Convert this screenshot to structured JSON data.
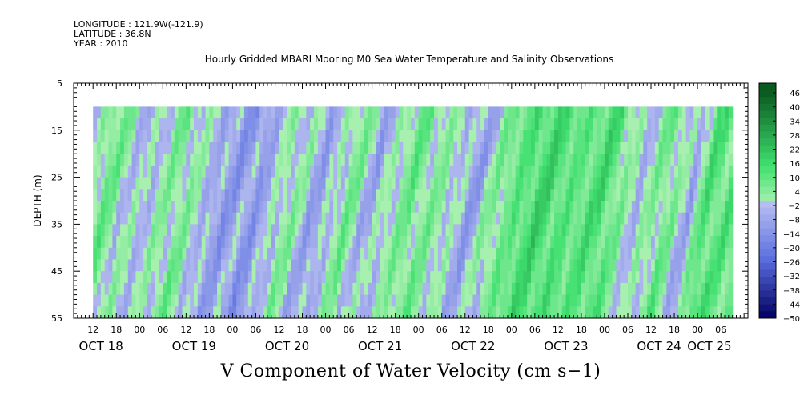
{
  "header": {
    "longitude": "LONGITUDE : 121.9W(-121.9)",
    "latitude": "LATITUDE : 36.8N",
    "year": "YEAR : 2010"
  },
  "chart_data": {
    "type": "heatmap",
    "title": "Hourly Gridded MBARI Mooring M0 Sea Water Temperature and Salinity Observations",
    "variable_label": "V Component of Water Velocity (cm s−1)",
    "ylabel": "DEPTH (m)",
    "y_inverted": true,
    "ylim": [
      5,
      55
    ],
    "y_ticks": [
      "5",
      "15",
      "25",
      "35",
      "45",
      "55"
    ],
    "data_depth_range": [
      10,
      55
    ],
    "xlim_hours": [
      0,
      174
    ],
    "data_start_hour": 5,
    "data_end_hour": 170,
    "x_hour_labels": [
      "12",
      "18",
      "00",
      "06",
      "12",
      "18",
      "00",
      "06",
      "12",
      "18",
      "00",
      "06",
      "12",
      "18",
      "00",
      "06",
      "12",
      "18",
      "00",
      "06",
      "12",
      "18",
      "00",
      "06",
      "12",
      "18",
      "00",
      "06"
    ],
    "x_day_labels": [
      "OCT 18",
      "OCT 19",
      "OCT 20",
      "OCT 21",
      "OCT 22",
      "OCT 23",
      "OCT 24",
      "OCT 25"
    ],
    "colorbar": {
      "labels": [
        "46",
        "40",
        "34",
        "28",
        "22",
        "16",
        "10",
        "4",
        "−2",
        "−8",
        "−14",
        "−20",
        "−26",
        "−32",
        "−38",
        "−44",
        "−50"
      ],
      "min": -50,
      "max": 52,
      "step": 3
    },
    "colors": {
      "positive_light": "#a8f0b0",
      "positive_mid": "#40e070",
      "positive_dark": "#0a5a20",
      "negative_light": "#b8bff0",
      "negative_mid": "#5c70e0",
      "negative_dark": "#000060"
    },
    "field_profile": {
      "description_hours": [
        5,
        10,
        20,
        30,
        40,
        50,
        58,
        66,
        74,
        80,
        90,
        100,
        106,
        112,
        118,
        124,
        132,
        140,
        148,
        156,
        162,
        166,
        170
      ],
      "mean_v": [
        -6,
        8,
        -4,
        6,
        -8,
        -10,
        4,
        -8,
        6,
        -6,
        8,
        0,
        -8,
        4,
        12,
        16,
        10,
        14,
        -4,
        8,
        -8,
        14,
        10
      ]
    }
  }
}
